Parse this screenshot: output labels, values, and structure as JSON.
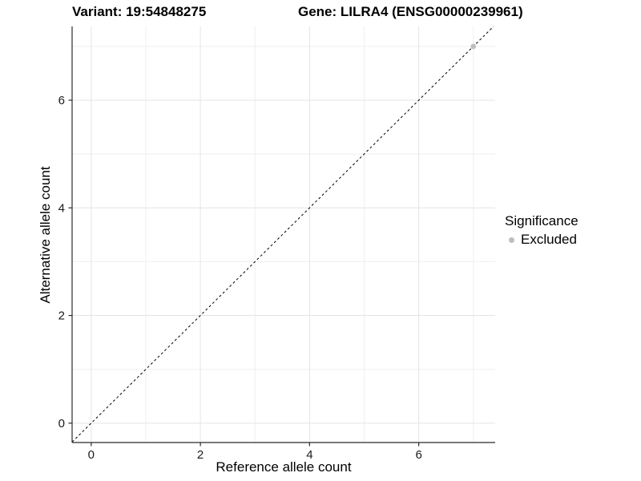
{
  "chart_data": {
    "type": "scatter",
    "title_left": "Variant: 19:54848275",
    "title_right": "Gene: LILRA4 (ENSG00000239961)",
    "xlabel": "Reference allele count",
    "ylabel": "Alternative allele count",
    "xlim": [
      -0.35,
      7.4
    ],
    "ylim": [
      -0.36,
      7.37
    ],
    "xticks": [
      0,
      2,
      4,
      6
    ],
    "yticks": [
      0,
      2,
      4,
      6
    ],
    "xticks_minor": [
      1,
      3,
      5,
      7
    ],
    "yticks_minor": [
      1,
      3,
      5,
      7
    ],
    "grid": true,
    "legend_position": "right",
    "identity_line": {
      "style": "dashed",
      "slope": 1,
      "intercept": 0,
      "color": "#000000"
    },
    "series": [
      {
        "name": "Excluded",
        "color": "#bebebe",
        "points": [
          {
            "x": 7,
            "y": 7
          }
        ]
      }
    ],
    "legend": {
      "title": "Significance",
      "items": [
        {
          "label": "Excluded",
          "color": "#bebebe"
        }
      ]
    },
    "colors": {
      "grid_major": "#e4e4e4",
      "grid_minor": "#efefef",
      "axis_line": "#2b2b2b",
      "tick_label": "#1a1a1a",
      "background": "#ffffff"
    }
  }
}
